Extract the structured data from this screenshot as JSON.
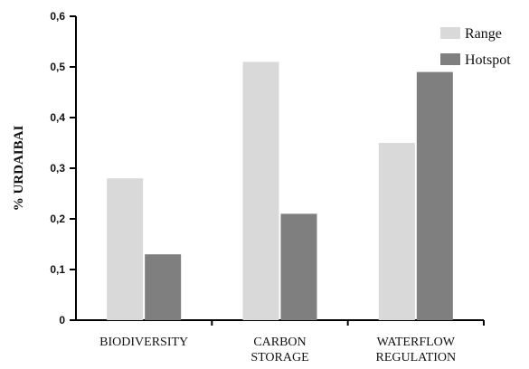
{
  "chart_data": {
    "type": "bar",
    "categories": [
      [
        "BIODIVERSITY"
      ],
      [
        "CARBON",
        "STORAGE"
      ],
      [
        "WATERFLOW",
        "REGULATION"
      ]
    ],
    "series": [
      {
        "name": "Range",
        "color": "#d9d9d9",
        "values": [
          0.28,
          0.51,
          0.35
        ]
      },
      {
        "name": "Hotspot",
        "color": "#7f7f7f",
        "values": [
          0.13,
          0.21,
          0.49
        ]
      }
    ],
    "ylabel": "% URDAIBAI",
    "xlabel": "",
    "ylim": [
      0,
      0.6
    ],
    "yticks": [
      0,
      0.1,
      0.2,
      0.3,
      0.4,
      0.5,
      0.6
    ],
    "ytick_labels": [
      "0",
      "0,1",
      "0,2",
      "0,3",
      "0,4",
      "0,5",
      "0,6"
    ],
    "grid": false,
    "legend_position": "top-right"
  }
}
